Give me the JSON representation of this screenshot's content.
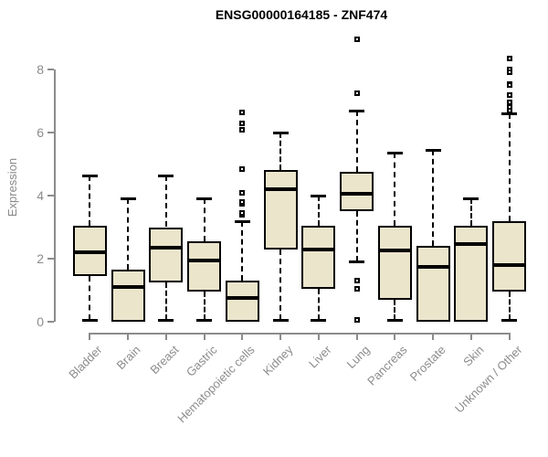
{
  "chart_data": {
    "type": "boxplot",
    "title": "ENSG00000164185 - ZNF474",
    "xlabel": "",
    "ylabel": "Expression",
    "ylim": [
      0,
      8
    ],
    "yticks": [
      0,
      2,
      4,
      6,
      8
    ],
    "grid": false,
    "legend": "none",
    "outlier_marker": "open-square",
    "categories": [
      "Bladder",
      "Brain",
      "Breast",
      "Gastric",
      "Hematopoietic cells",
      "Kidney",
      "Liver",
      "Lung",
      "Pancreas",
      "Prostate",
      "Skin",
      "Unknown / Other"
    ],
    "boxes": [
      {
        "category": "Bladder",
        "whisker_low": 0.05,
        "q1": 1.45,
        "median": 2.2,
        "q3": 3.05,
        "whisker_high": 4.65,
        "outliers": []
      },
      {
        "category": "Brain",
        "whisker_low": 0,
        "q1": 0,
        "median": 1.1,
        "q3": 1.65,
        "whisker_high": 3.9,
        "outliers": []
      },
      {
        "category": "Breast",
        "whisker_low": 0.05,
        "q1": 1.25,
        "median": 2.35,
        "q3": 3.0,
        "whisker_high": 4.65,
        "outliers": []
      },
      {
        "category": "Gastric",
        "whisker_low": 0.05,
        "q1": 0.95,
        "median": 1.95,
        "q3": 2.55,
        "whisker_high": 3.9,
        "outliers": []
      },
      {
        "category": "Hematopoietic cells",
        "whisker_low": 0,
        "q1": 0,
        "median": 0.75,
        "q3": 1.3,
        "whisker_high": 3.2,
        "outliers": [
          3.4,
          3.45,
          3.75,
          3.8,
          4.1,
          4.85,
          6.1,
          6.3,
          6.65
        ]
      },
      {
        "category": "Kidney",
        "whisker_low": 0.05,
        "q1": 2.3,
        "median": 4.2,
        "q3": 4.8,
        "whisker_high": 6.0,
        "outliers": []
      },
      {
        "category": "Liver",
        "whisker_low": 0.05,
        "q1": 1.05,
        "median": 2.3,
        "q3": 3.05,
        "whisker_high": 4.0,
        "outliers": []
      },
      {
        "category": "Lung",
        "whisker_low": 1.9,
        "q1": 3.5,
        "median": 4.05,
        "q3": 4.75,
        "whisker_high": 6.7,
        "outliers": [
          8.95,
          7.25,
          1.3,
          1.05,
          0.05
        ]
      },
      {
        "category": "Pancreas",
        "whisker_low": 0.05,
        "q1": 0.7,
        "median": 2.25,
        "q3": 3.05,
        "whisker_high": 5.35,
        "outliers": []
      },
      {
        "category": "Prostate",
        "whisker_low": 0,
        "q1": 0,
        "median": 1.75,
        "q3": 2.4,
        "whisker_high": 5.45,
        "outliers": []
      },
      {
        "category": "Skin",
        "whisker_low": 0,
        "q1": 0,
        "median": 2.45,
        "q3": 3.05,
        "whisker_high": 3.9,
        "outliers": []
      },
      {
        "category": "Unknown / Other",
        "whisker_low": 0.05,
        "q1": 0.95,
        "median": 1.8,
        "q3": 3.2,
        "whisker_high": 6.6,
        "outliers": [
          8.35,
          8.0,
          7.9,
          7.55,
          7.5,
          7.2,
          6.95,
          6.8,
          6.7
        ]
      }
    ],
    "colors": {
      "box_fill": "#ebe5cc",
      "box_border": "#000000",
      "median": "#000000",
      "axis": "#8c8c8c",
      "tick_text": "#8c8c8c",
      "title_text": "#000000",
      "background": "#ffffff"
    }
  }
}
